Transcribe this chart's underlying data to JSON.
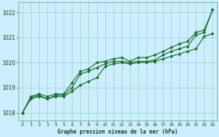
{
  "background_color": "#cceeff",
  "plot_bg_color": "#cceeff",
  "grid_color": "#99ccbb",
  "line_color": "#1a6e2e",
  "marker_color": "#1a6e2e",
  "xlabel": "Graphe pression niveau de la mer (hPa)",
  "ylim": [
    1017.7,
    1022.4
  ],
  "xlim": [
    -0.5,
    23.5
  ],
  "yticks": [
    1018,
    1019,
    1020,
    1021,
    1022
  ],
  "xticks": [
    0,
    1,
    2,
    3,
    4,
    5,
    6,
    7,
    8,
    9,
    10,
    11,
    12,
    13,
    14,
    15,
    16,
    17,
    18,
    19,
    20,
    21,
    22,
    23
  ],
  "series_low": [
    1018.0,
    1018.55,
    1018.65,
    1018.55,
    1018.65,
    1018.65,
    1018.85,
    1019.1,
    1019.25,
    1019.4,
    1019.85,
    1019.95,
    1020.0,
    1019.95,
    1020.0,
    1020.0,
    1020.05,
    1020.15,
    1020.25,
    1020.35,
    1020.45,
    1020.55,
    1021.05,
    1021.15
  ],
  "series_mid": [
    1018.0,
    1018.6,
    1018.7,
    1018.55,
    1018.7,
    1018.7,
    1019.0,
    1019.55,
    1019.65,
    1019.8,
    1019.95,
    1020.05,
    1020.05,
    1020.0,
    1020.05,
    1020.05,
    1020.1,
    1020.3,
    1020.45,
    1020.55,
    1020.65,
    1021.1,
    1021.2,
    1022.1
  ],
  "series_high": [
    1018.0,
    1018.65,
    1018.75,
    1018.65,
    1018.75,
    1018.75,
    1019.2,
    1019.65,
    1019.75,
    1020.0,
    1020.05,
    1020.15,
    1020.2,
    1020.05,
    1020.2,
    1020.2,
    1020.3,
    1020.45,
    1020.6,
    1020.75,
    1020.85,
    1021.2,
    1021.3,
    1022.1
  ]
}
